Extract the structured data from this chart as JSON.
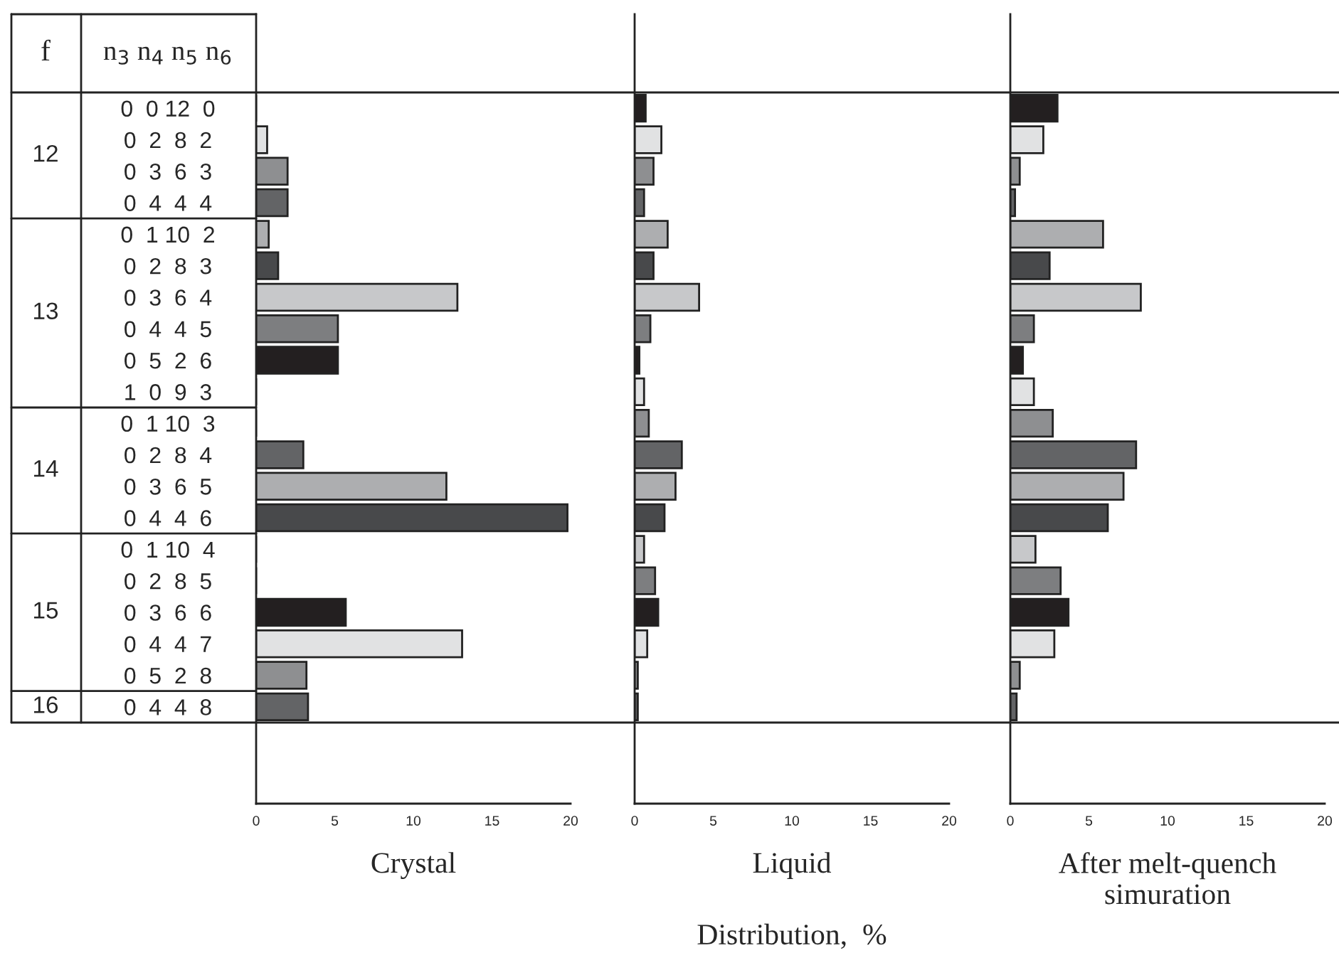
{
  "chart_data": [
    {
      "type": "bar",
      "orientation": "horizontal",
      "xlabel": "Crystal",
      "categories": [
        "0  0 12  0",
        "0  2  8  2",
        "0  3  6  3",
        "0  4  4  4",
        "0  1 10  2",
        "0  2  8  3",
        "0  3  6  4",
        "0  4  4  5",
        "0  5  2  6",
        "1  0  9  3",
        "0  1 10  3",
        "0  2  8  4",
        "0  3  6  5",
        "0  4  4  6",
        "0  1 10  4",
        "0  2  8  5",
        "0  3  6  6",
        "0  4  4  7",
        "0  5  2  8",
        "0  4  4  8"
      ],
      "values": [
        0,
        0.7,
        2.0,
        2.0,
        0.8,
        1.4,
        12.8,
        5.2,
        5.2,
        0,
        0,
        3.0,
        12.1,
        19.8,
        0,
        0,
        5.7,
        13.1,
        3.2,
        3.3
      ],
      "colors": [
        "#231f20",
        "#e1e2e3",
        "#8e8f91",
        "#636466",
        "#adaeb0",
        "#48494b",
        "#c7c8ca",
        "#7d7e80",
        "#231f20",
        "#e1e2e3",
        "#8e8f91",
        "#636466",
        "#adaeb0",
        "#48494b",
        "#c7c8ca",
        "#7d7e80",
        "#231f20",
        "#e1e2e3",
        "#8e8f91",
        "#636466"
      ],
      "xlim": [
        0,
        20
      ],
      "xticks": [
        0,
        5,
        10,
        15,
        20
      ],
      "legend": false,
      "annotations": [
        "f",
        "n$_{3}$ n$_{4}$ n$_{5}$ n$_{6}$",
        "12",
        "13",
        "14",
        "15",
        "16"
      ]
    },
    {
      "type": "bar",
      "orientation": "horizontal",
      "xlabel": "Liquid",
      "tick_labels": "x",
      "categories": [
        null,
        null,
        null,
        null,
        null,
        null,
        null,
        null,
        null,
        null,
        null,
        null,
        null,
        null,
        null,
        null,
        null,
        null,
        null,
        null
      ],
      "values": [
        0.7,
        1.7,
        1.2,
        0.6,
        2.1,
        1.2,
        4.1,
        1.0,
        0.3,
        0.6,
        0.9,
        3.0,
        2.6,
        1.9,
        0.6,
        1.3,
        1.5,
        0.8,
        0.2,
        0.2
      ],
      "colors": [
        "#231f20",
        "#e1e2e3",
        "#8e8f91",
        "#636466",
        "#adaeb0",
        "#48494b",
        "#c7c8ca",
        "#7d7e80",
        "#231f20",
        "#e1e2e3",
        "#8e8f91",
        "#636466",
        "#adaeb0",
        "#48494b",
        "#c7c8ca",
        "#7d7e80",
        "#231f20",
        "#e1e2e3",
        "#8e8f91",
        "#636466"
      ],
      "xlim": [
        0,
        20
      ],
      "xticks": [
        0,
        5,
        10,
        15,
        20
      ],
      "legend": false,
      "annotations": [
        "Distribution,  %"
      ]
    },
    {
      "type": "bar",
      "orientation": "horizontal",
      "xlabel": "After melt-quench\nsimuration",
      "tick_labels": "x",
      "categories": [
        null,
        null,
        null,
        null,
        null,
        null,
        null,
        null,
        null,
        null,
        null,
        null,
        null,
        null,
        null,
        null,
        null,
        null,
        null,
        null
      ],
      "values": [
        3.0,
        2.1,
        0.6,
        0.3,
        5.9,
        2.5,
        8.3,
        1.5,
        0.8,
        1.5,
        2.7,
        8.0,
        7.2,
        6.2,
        1.6,
        3.2,
        3.7,
        2.8,
        0.6,
        0.4
      ],
      "colors": [
        "#231f20",
        "#e1e2e3",
        "#8e8f91",
        "#636466",
        "#adaeb0",
        "#48494b",
        "#c7c8ca",
        "#7d7e80",
        "#231f20",
        "#e1e2e3",
        "#8e8f91",
        "#636466",
        "#adaeb0",
        "#48494b",
        "#c7c8ca",
        "#7d7e80",
        "#231f20",
        "#e1e2e3",
        "#8e8f91",
        "#636466"
      ],
      "xlim": [
        0,
        20
      ],
      "xticks": [
        0,
        5,
        10,
        15,
        20
      ],
      "legend": false
    }
  ]
}
